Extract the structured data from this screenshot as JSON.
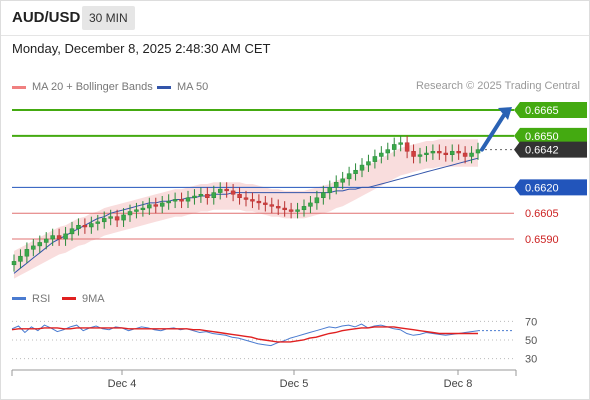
{
  "header": {
    "symbol": "AUD/USD",
    "timeframe": "30 MIN"
  },
  "datetime": "Monday, December 8, 2025 2:48:30 AM CET",
  "legend": {
    "ma20": {
      "label": "MA 20 + Bollinger Bands",
      "color": "#f08080"
    },
    "ma50": {
      "label": "MA 50",
      "color": "#3355aa"
    },
    "credit": "Research © 2025 Trading Central"
  },
  "chart_data": [
    {
      "type": "candlestick",
      "x_ticks": [
        "Dec 4",
        "Dec 5",
        "Dec 8"
      ],
      "price_range": [
        0.6565,
        0.6672
      ],
      "levels": [
        {
          "label": "0.6665",
          "value": 0.6665,
          "kind": "resistance"
        },
        {
          "label": "0.6650",
          "value": 0.665,
          "kind": "resistance"
        },
        {
          "label": "0.6642",
          "value": 0.6642,
          "kind": "current"
        },
        {
          "label": "0.6620",
          "value": 0.662,
          "kind": "pivot"
        },
        {
          "label": "0.6605",
          "value": 0.6605,
          "kind": "support"
        },
        {
          "label": "0.6590",
          "value": 0.659,
          "kind": "support"
        }
      ],
      "closes": [
        0.6577,
        0.658,
        0.6584,
        0.6586,
        0.6588,
        0.659,
        0.6592,
        0.659,
        0.6593,
        0.6596,
        0.6598,
        0.6597,
        0.6599,
        0.66,
        0.6602,
        0.6603,
        0.6601,
        0.6604,
        0.6606,
        0.6607,
        0.6608,
        0.661,
        0.6609,
        0.6611,
        0.6612,
        0.6613,
        0.6612,
        0.6614,
        0.6615,
        0.6616,
        0.6614,
        0.6617,
        0.6619,
        0.6618,
        0.6616,
        0.6614,
        0.6613,
        0.6612,
        0.6611,
        0.661,
        0.6609,
        0.6608,
        0.6607,
        0.6606,
        0.6607,
        0.6609,
        0.6611,
        0.6614,
        0.6617,
        0.662,
        0.6623,
        0.6625,
        0.6628,
        0.663,
        0.6633,
        0.6635,
        0.6638,
        0.664,
        0.6642,
        0.6645,
        0.6646,
        0.6641,
        0.6638,
        0.6639,
        0.664,
        0.6641,
        0.664,
        0.6639,
        0.6641,
        0.664,
        0.6638,
        0.664,
        0.6642
      ],
      "ma50": [
        0.657,
        0.6573,
        0.6576,
        0.6579,
        0.6582,
        0.6585,
        0.6588,
        0.659,
        0.6592,
        0.6594,
        0.6596,
        0.6598,
        0.66,
        0.6602,
        0.6603,
        0.6605,
        0.6606,
        0.6607,
        0.6608,
        0.6609,
        0.661,
        0.6611,
        0.6611,
        0.6612,
        0.6612,
        0.6613,
        0.6613,
        0.6614,
        0.6614,
        0.6615,
        0.6615,
        0.6616,
        0.6616,
        0.6616,
        0.6617,
        0.6617,
        0.6617,
        0.6617,
        0.6617,
        0.6617,
        0.6617,
        0.6617,
        0.6617,
        0.6617,
        0.6617,
        0.6617,
        0.6617,
        0.6617,
        0.6617,
        0.6617,
        0.6618,
        0.6618,
        0.6619,
        0.6619,
        0.662,
        0.662,
        0.6621,
        0.6622,
        0.6623,
        0.6624,
        0.6625,
        0.6626,
        0.6627,
        0.6628,
        0.6629,
        0.663,
        0.6631,
        0.6632,
        0.6633,
        0.6634,
        0.6635,
        0.6636,
        0.6637
      ],
      "ma20": [
        0.6575,
        0.6577,
        0.6579,
        0.6581,
        0.6583,
        0.6585,
        0.6587,
        0.6589,
        0.659,
        0.6592,
        0.6594,
        0.6595,
        0.6597,
        0.6598,
        0.66,
        0.6601,
        0.6602,
        0.6603,
        0.6604,
        0.6605,
        0.6606,
        0.6607,
        0.6608,
        0.6609,
        0.661,
        0.6611,
        0.6611,
        0.6612,
        0.6613,
        0.6614,
        0.6614,
        0.6615,
        0.6615,
        0.6615,
        0.6615,
        0.6615,
        0.6614,
        0.6614,
        0.6613,
        0.6612,
        0.6611,
        0.6611,
        0.661,
        0.661,
        0.661,
        0.661,
        0.6611,
        0.6612,
        0.6613,
        0.6614,
        0.6616,
        0.6617,
        0.6619,
        0.6621,
        0.6623,
        0.6625,
        0.6627,
        0.6629,
        0.6631,
        0.6633,
        0.6635,
        0.6636,
        0.6637,
        0.6638,
        0.6639,
        0.6639,
        0.664,
        0.664,
        0.664,
        0.664,
        0.664,
        0.664,
        0.664
      ],
      "bb_width": 0.0008,
      "projection": {
        "from": 0.6642,
        "to": 0.6665
      }
    },
    {
      "type": "line",
      "title": "RSI",
      "series": [
        {
          "name": "RSI",
          "color": "#4a7bd0",
          "values": [
            62,
            65,
            58,
            64,
            60,
            66,
            63,
            59,
            61,
            64,
            66,
            60,
            63,
            65,
            62,
            61,
            64,
            63,
            60,
            62,
            64,
            63,
            61,
            60,
            62,
            63,
            61,
            62,
            60,
            58,
            59,
            57,
            56,
            55,
            53,
            52,
            50,
            48,
            46,
            45,
            44,
            47,
            49,
            52,
            54,
            56,
            58,
            60,
            62,
            64,
            63,
            65,
            66,
            64,
            67,
            63,
            65,
            66,
            64,
            62,
            61,
            57,
            55,
            56,
            58,
            57,
            56,
            55,
            56,
            57,
            58,
            59,
            60
          ]
        },
        {
          "name": "9MA",
          "color": "#e02020",
          "values": [
            61,
            62,
            62,
            62,
            62,
            63,
            63,
            63,
            62,
            62,
            63,
            63,
            63,
            63,
            63,
            63,
            63,
            63,
            62,
            62,
            62,
            62,
            62,
            62,
            62,
            62,
            62,
            62,
            61,
            61,
            60,
            59,
            58,
            57,
            56,
            55,
            54,
            53,
            51,
            50,
            49,
            48,
            48,
            48,
            49,
            50,
            52,
            53,
            55,
            57,
            58,
            60,
            61,
            62,
            63,
            63,
            64,
            64,
            64,
            64,
            63,
            62,
            61,
            60,
            59,
            58,
            57,
            57,
            57,
            57,
            57,
            57,
            57
          ]
        }
      ],
      "ylim": [
        20,
        80
      ],
      "y_ticks": [
        "70",
        "50",
        "30"
      ]
    }
  ]
}
